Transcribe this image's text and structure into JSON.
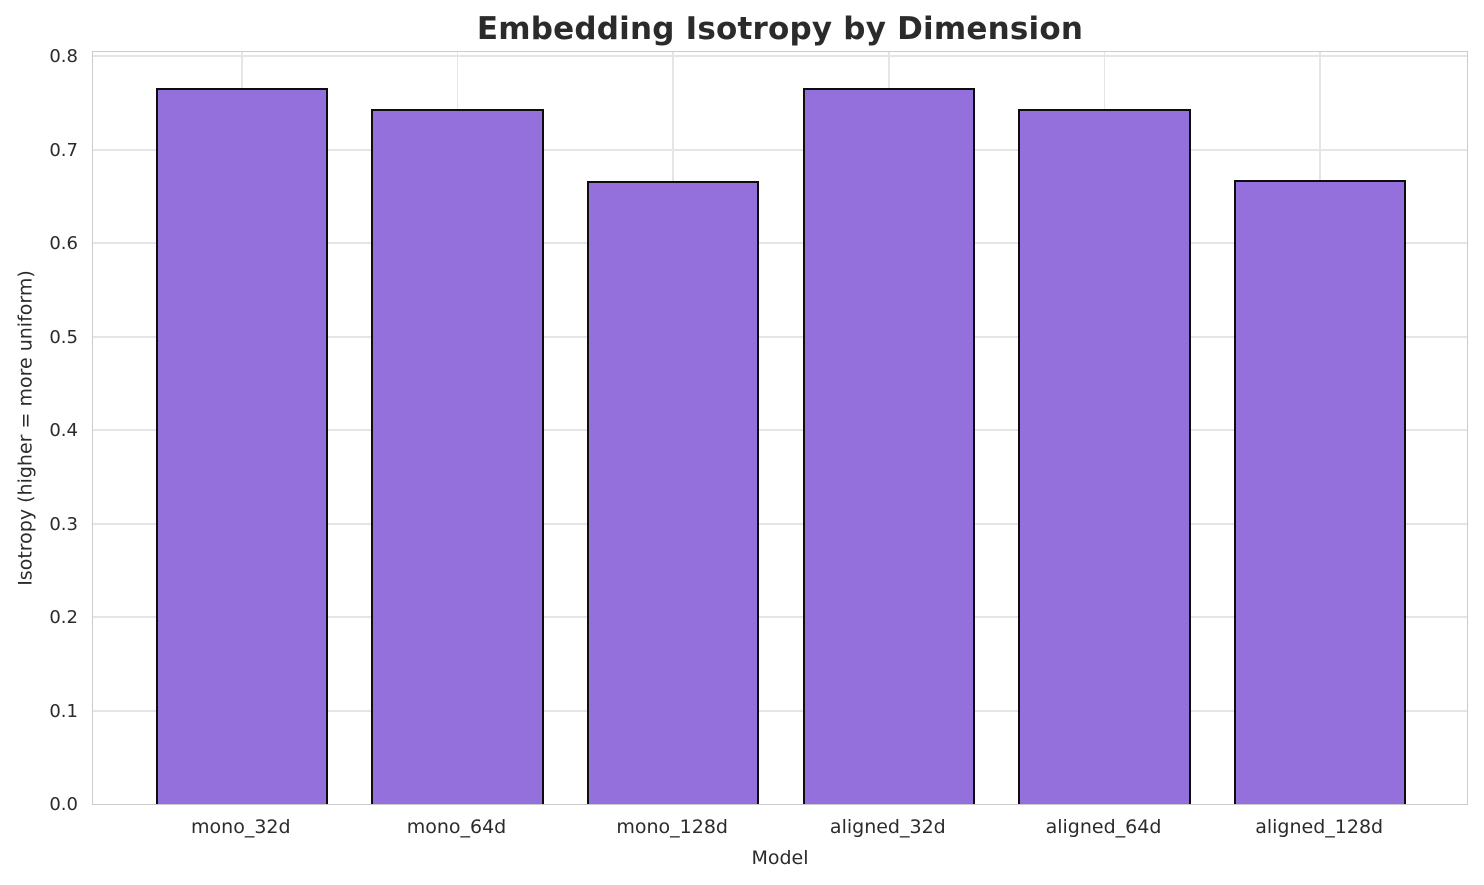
{
  "chart_data": {
    "type": "bar",
    "title": "Embedding Isotropy by Dimension",
    "xlabel": "Model",
    "ylabel": "Isotropy (higher = more uniform)",
    "categories": [
      "mono_32d",
      "mono_64d",
      "mono_128d",
      "aligned_32d",
      "aligned_64d",
      "aligned_128d"
    ],
    "values": [
      0.766,
      0.743,
      0.666,
      0.766,
      0.743,
      0.667
    ],
    "ylim": [
      0.0,
      0.8
    ],
    "ytick_labels": [
      "0.0",
      "0.1",
      "0.2",
      "0.3",
      "0.4",
      "0.5",
      "0.6",
      "0.7",
      "0.8"
    ],
    "grid": "horizontal and vertical light gray gridlines",
    "legend_position": "none",
    "bar_color": "#9370DB",
    "bar_edge_color": "#0d0d0d",
    "text_color": "#2b2b2b"
  }
}
